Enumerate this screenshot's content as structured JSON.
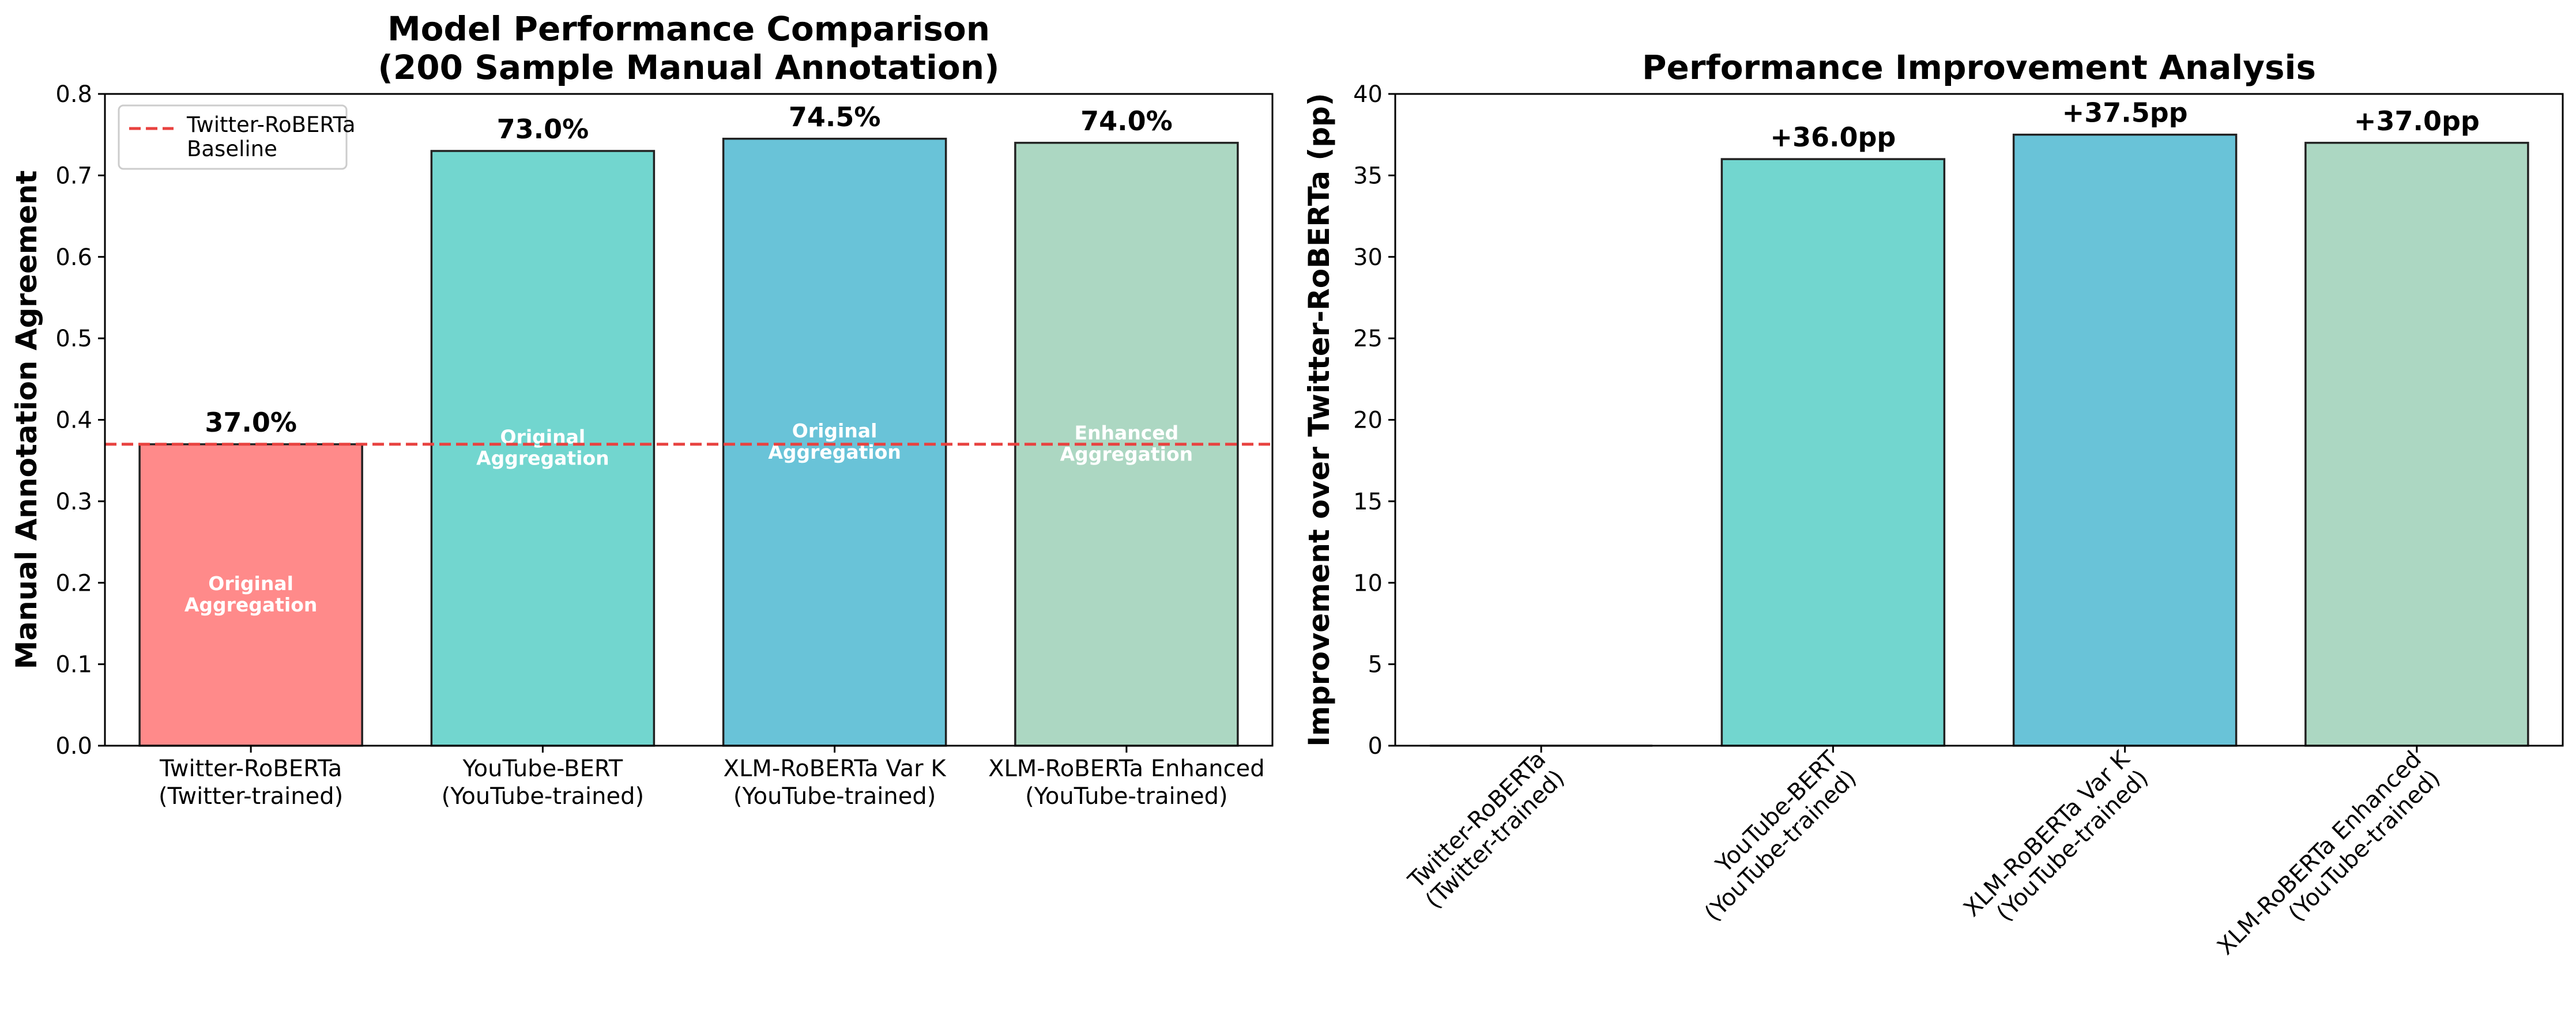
{
  "chart_data": [
    {
      "type": "bar",
      "title": "Model Performance Comparison\n(200 Sample Manual Annotation)",
      "xlabel": "",
      "ylabel": "Manual Annotation Agreement",
      "categories": [
        "Twitter-RoBERTa\n(Twitter-trained)",
        "YouTube-BERT\n(YouTube-trained)",
        "XLM-RoBERTa Var K\n(YouTube-trained)",
        "XLM-RoBERTa Enhanced\n(YouTube-trained)"
      ],
      "values": [
        0.37,
        0.73,
        0.745,
        0.74
      ],
      "value_labels": [
        "37.0%",
        "73.0%",
        "74.5%",
        "74.0%"
      ],
      "inner_labels": [
        "Original\nAggregation",
        "Original\nAggregation",
        "Original\nAggregation",
        "Enhanced\nAggregation"
      ],
      "colors": [
        "#ff8a8a",
        "#72d6cf",
        "#69c3d8",
        "#acd7c2"
      ],
      "ylim": [
        0,
        0.8
      ],
      "yticks": [
        0.0,
        0.1,
        0.2,
        0.3,
        0.4,
        0.5,
        0.6,
        0.7,
        0.8
      ],
      "ytick_labels": [
        "0.0",
        "0.1",
        "0.2",
        "0.3",
        "0.4",
        "0.5",
        "0.6",
        "0.7",
        "0.8"
      ],
      "reference_line": {
        "value": 0.37,
        "label": "Twitter-RoBERTa\nBaseline",
        "color": "#e8423f",
        "style": "dashed"
      },
      "legend": {
        "position": "top-left",
        "entries": [
          "Twitter-RoBERTa\nBaseline"
        ]
      },
      "grid": false
    },
    {
      "type": "bar",
      "title": "Performance Improvement Analysis",
      "xlabel": "",
      "ylabel": "Improvement over Twitter-RoBERTa (pp)",
      "categories": [
        "Twitter-RoBERTa\n(Twitter-trained)",
        "YouTube-BERT\n(YouTube-trained)",
        "XLM-RoBERTa Var K\n(YouTube-trained)",
        "XLM-RoBERTa Enhanced\n(YouTube-trained)"
      ],
      "values": [
        0.0,
        36.0,
        37.5,
        37.0
      ],
      "value_labels": [
        "",
        "+36.0pp",
        "+37.5pp",
        "+37.0pp"
      ],
      "colors": [
        "#ff8a8a",
        "#72d6cf",
        "#69c3d8",
        "#acd7c2"
      ],
      "ylim": [
        0,
        40
      ],
      "yticks": [
        0,
        5,
        10,
        15,
        20,
        25,
        30,
        35,
        40
      ],
      "ytick_labels": [
        "0",
        "5",
        "10",
        "15",
        "20",
        "25",
        "30",
        "35",
        "40"
      ],
      "xtick_rotation": 45,
      "grid": false
    }
  ]
}
